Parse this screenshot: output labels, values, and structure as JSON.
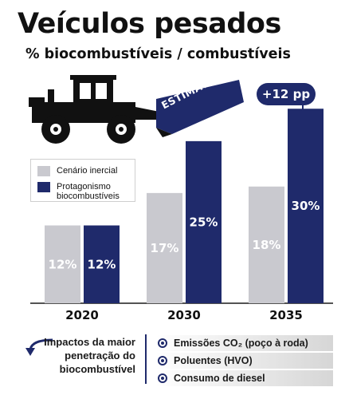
{
  "header": {
    "title": "Veículos pesados",
    "subtitle": "% biocombustíveis / combustíveis"
  },
  "annotations": {
    "estimativas": "ESTIMATIVAS",
    "pp_badge": "+12 pp"
  },
  "chart_data": {
    "type": "bar",
    "title": "Veículos pesados",
    "subtitle": "% biocombustíveis / combustíveis",
    "categories": [
      "2020",
      "2030",
      "2035"
    ],
    "series": [
      {
        "name": "Cenário inercial",
        "values": [
          12,
          17,
          18
        ],
        "labels": [
          "12%",
          "17%",
          "18%"
        ]
      },
      {
        "name": "Protagonismo biocombustíveis",
        "values": [
          12,
          25,
          30
        ],
        "labels": [
          "12%",
          "25%",
          "30%"
        ]
      }
    ],
    "ylim": [
      0,
      32
    ],
    "grid": false,
    "legend_placement": "top-left",
    "colors": {
      "inercial": "#c9c9cf",
      "protagonismo": "#1f2a6b",
      "inercial_label": "#ffffff",
      "protagonismo_label": "#ffffff"
    }
  },
  "legend": {
    "items": [
      {
        "label": "Cenário inercial",
        "color": "#c9c9cf"
      },
      {
        "label": "Protagonismo biocombustíveis",
        "color": "#1f2a6b"
      }
    ]
  },
  "impacts": {
    "label": "Impactos da maior penetração do biocombustível",
    "items": [
      "Emissões CO₂ (poço à roda)",
      "Poluentes (HVO)",
      "Consumo de diesel"
    ]
  },
  "icons": {
    "vehicle": "wheel-loader-icon",
    "arrow": "curved-arrow-icon",
    "bullet": "target-icon"
  }
}
